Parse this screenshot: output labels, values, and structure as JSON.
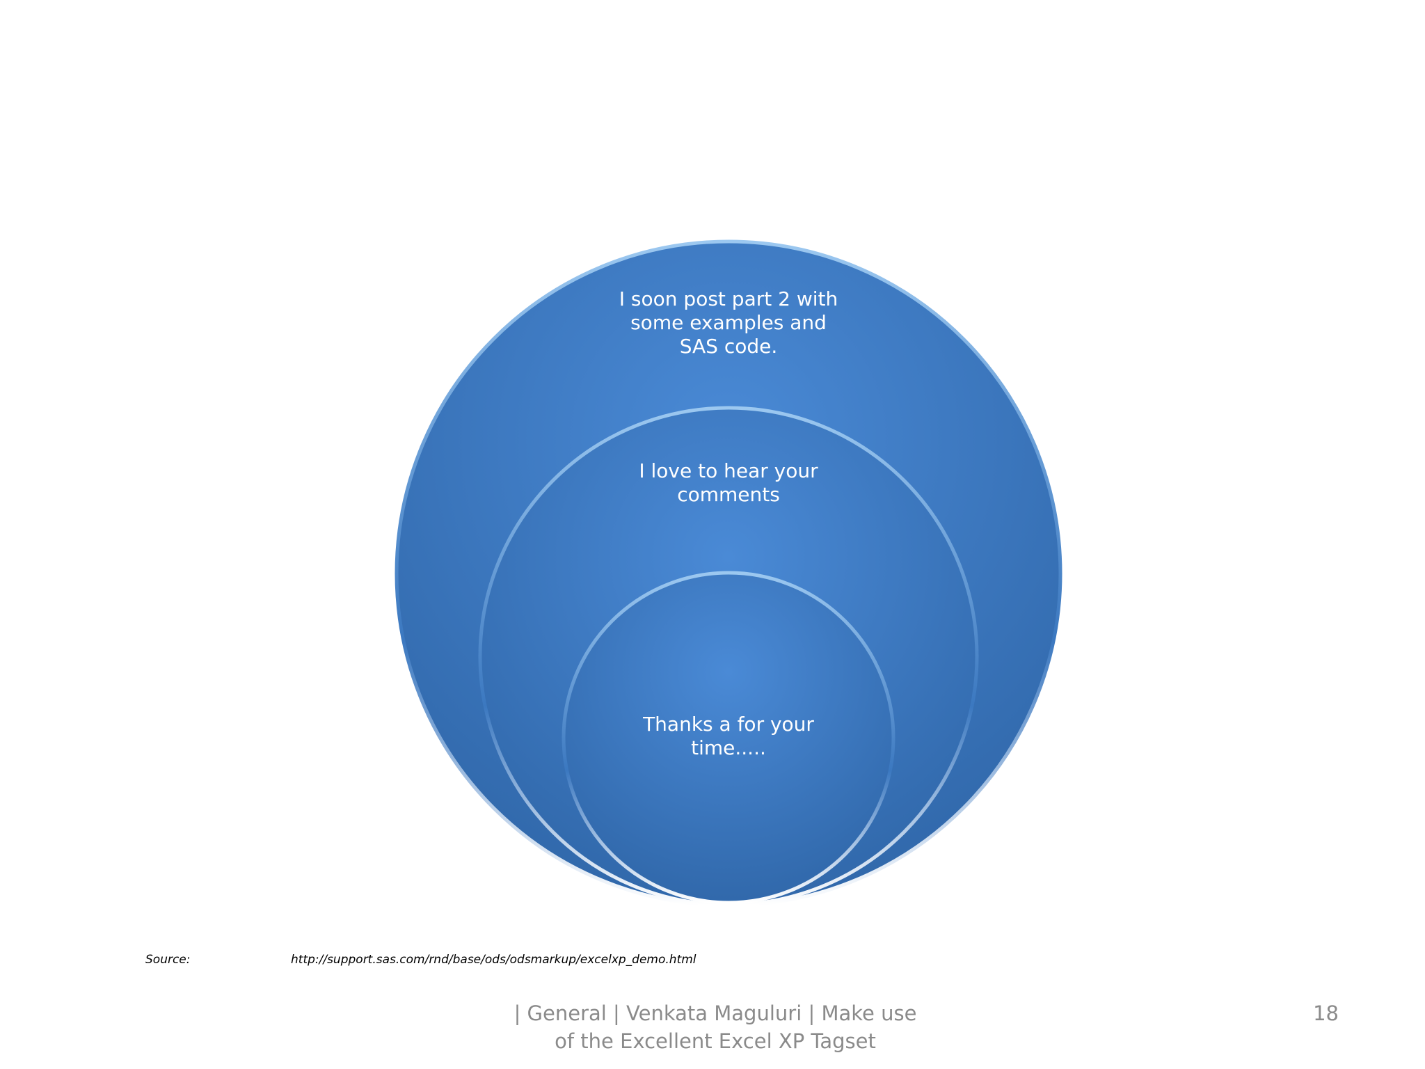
{
  "nodes": [
    {
      "lines": [
        "I soon post part 2 with",
        "some examples and",
        "SAS code."
      ]
    },
    {
      "lines": [
        "I love to hear your",
        "comments"
      ]
    },
    {
      "lines": [
        "Thanks a for your",
        "time....."
      ]
    }
  ],
  "source": {
    "label": "Source:",
    "url": "http://support.sas.com/rnd/base/ods/odsmarkup/excelxp_demo.html"
  },
  "footer": {
    "lines": [
      "| General | Venkata Maguluri | Make use",
      "of the Excellent Excel XP Tagset"
    ],
    "page_number": "18"
  }
}
